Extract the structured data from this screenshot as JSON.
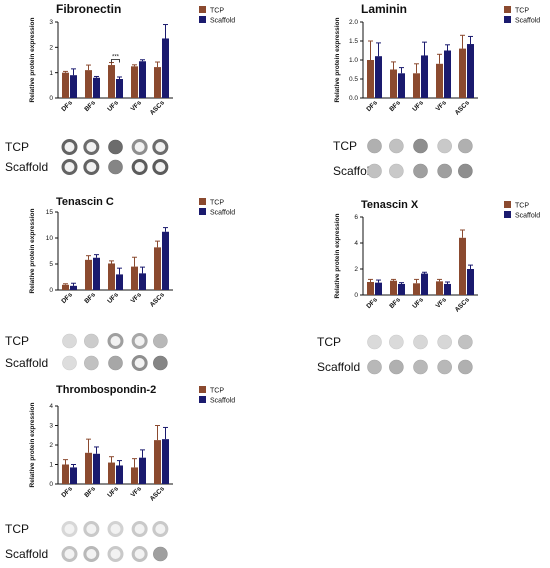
{
  "colors": {
    "tcp": "#8B4A2F",
    "scaffold": "#1A1A6E",
    "axis": "#111111"
  },
  "blot_labels": {
    "tcp": "TCP",
    "scaffold": "Scaffold"
  },
  "chart_data": [
    {
      "type": "bar",
      "title": "Fibronectin",
      "ylabel": "Relative protein expression",
      "categories": [
        "DFs",
        "BFs",
        "UFs",
        "VFs",
        "ASCs"
      ],
      "ylim": [
        0,
        3
      ],
      "yticks": [
        0,
        1,
        2,
        3
      ],
      "series": [
        {
          "name": "TCP",
          "values": [
            1.0,
            1.1,
            1.3,
            1.25,
            1.22
          ],
          "errors": [
            0.05,
            0.2,
            0.1,
            0.06,
            0.2
          ]
        },
        {
          "name": "Scaffold",
          "values": [
            0.9,
            0.8,
            0.75,
            1.45,
            2.35
          ],
          "errors": [
            0.25,
            0.05,
            0.08,
            0.06,
            0.55
          ]
        }
      ],
      "annotations": [
        {
          "text": "***",
          "category": "UFs"
        }
      ],
      "legend": "top-right"
    },
    {
      "type": "bar",
      "title": "Laminin",
      "ylabel": "Relative protein expression",
      "categories": [
        "DFs",
        "BFs",
        "UFs",
        "VFs",
        "ASCs"
      ],
      "ylim": [
        0,
        2.0
      ],
      "yticks": [
        0.0,
        0.5,
        1.0,
        1.5,
        2.0
      ],
      "yticklabels": [
        "0.0",
        "0.5",
        "1.0",
        "1.5",
        "2.0"
      ],
      "series": [
        {
          "name": "TCP",
          "values": [
            1.0,
            0.75,
            0.65,
            0.9,
            1.3
          ],
          "errors": [
            0.5,
            0.2,
            0.25,
            0.25,
            0.35
          ]
        },
        {
          "name": "Scaffold",
          "values": [
            1.1,
            0.65,
            1.12,
            1.25,
            1.42
          ],
          "errors": [
            0.35,
            0.15,
            0.35,
            0.15,
            0.2
          ]
        }
      ],
      "legend": "top-right"
    },
    {
      "type": "bar",
      "title": "Tenascin C",
      "ylabel": "Relative protein expression",
      "categories": [
        "DFs",
        "BFs",
        "UFs",
        "VFs",
        "ASCs"
      ],
      "ylim": [
        0,
        15
      ],
      "yticks": [
        0,
        5,
        10,
        15
      ],
      "series": [
        {
          "name": "TCP",
          "values": [
            1.0,
            5.8,
            5.1,
            4.5,
            8.2
          ],
          "errors": [
            0.2,
            0.8,
            0.5,
            1.8,
            1.2
          ]
        },
        {
          "name": "Scaffold",
          "values": [
            0.8,
            6.2,
            3.0,
            3.2,
            11.2
          ],
          "errors": [
            0.5,
            0.6,
            1.2,
            1.2,
            0.8
          ]
        }
      ],
      "legend": "top-right"
    },
    {
      "type": "bar",
      "title": "Tenascin X",
      "ylabel": "Relative protein expression",
      "categories": [
        "DFs",
        "BFs",
        "UFs",
        "VFs",
        "ASCs"
      ],
      "ylim": [
        0,
        6
      ],
      "yticks": [
        0,
        2,
        4,
        6
      ],
      "series": [
        {
          "name": "TCP",
          "values": [
            1.0,
            1.1,
            0.9,
            1.05,
            4.4
          ],
          "errors": [
            0.2,
            0.1,
            0.3,
            0.15,
            0.6
          ]
        },
        {
          "name": "Scaffold",
          "values": [
            0.95,
            0.85,
            1.65,
            0.85,
            2.0
          ],
          "errors": [
            0.2,
            0.1,
            0.1,
            0.15,
            0.3
          ]
        }
      ],
      "legend": "top-right"
    },
    {
      "type": "bar",
      "title": "Thrombospondin-2",
      "ylabel": "Relative protein expression",
      "categories": [
        "DFs",
        "BFs",
        "UFs",
        "VFs",
        "ASCs"
      ],
      "ylim": [
        0,
        4
      ],
      "yticks": [
        0,
        1,
        2,
        3,
        4
      ],
      "series": [
        {
          "name": "TCP",
          "values": [
            1.0,
            1.6,
            1.1,
            0.85,
            2.25
          ],
          "errors": [
            0.25,
            0.7,
            0.3,
            0.45,
            0.75
          ]
        },
        {
          "name": "Scaffold",
          "values": [
            0.85,
            1.55,
            0.95,
            1.35,
            2.3
          ],
          "errors": [
            0.15,
            0.35,
            0.25,
            0.4,
            0.6
          ]
        }
      ],
      "legend": "top-right"
    }
  ]
}
